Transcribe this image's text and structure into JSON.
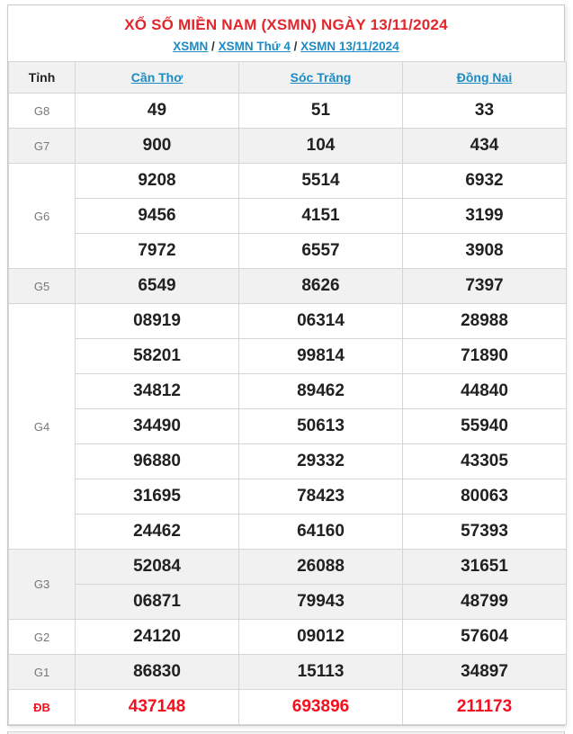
{
  "page": {
    "title": "XỔ SỐ MIỀN NAM (XSMN) NGÀY 13/11/2024",
    "breadcrumb_separator": "/",
    "breadcrumb": [
      {
        "label": "XSMN"
      },
      {
        "label": "XSMN Thứ 4"
      },
      {
        "label": "XSMN 13/11/2024"
      }
    ]
  },
  "table": {
    "corner_header": "Tỉnh",
    "provinces": [
      "Cần Thơ",
      "Sóc Trăng",
      "Đồng Nai"
    ],
    "prize_groups": [
      {
        "label": "G8",
        "shaded": false,
        "special": false,
        "rows": [
          [
            "49",
            "51",
            "33"
          ]
        ]
      },
      {
        "label": "G7",
        "shaded": true,
        "special": false,
        "rows": [
          [
            "900",
            "104",
            "434"
          ]
        ]
      },
      {
        "label": "G6",
        "shaded": false,
        "special": false,
        "rows": [
          [
            "9208",
            "5514",
            "6932"
          ],
          [
            "9456",
            "4151",
            "3199"
          ],
          [
            "7972",
            "6557",
            "3908"
          ]
        ]
      },
      {
        "label": "G5",
        "shaded": true,
        "special": false,
        "rows": [
          [
            "6549",
            "8626",
            "7397"
          ]
        ]
      },
      {
        "label": "G4",
        "shaded": false,
        "special": false,
        "rows": [
          [
            "08919",
            "06314",
            "28988"
          ],
          [
            "58201",
            "99814",
            "71890"
          ],
          [
            "34812",
            "89462",
            "44840"
          ],
          [
            "34490",
            "50613",
            "55940"
          ],
          [
            "96880",
            "29332",
            "43305"
          ],
          [
            "31695",
            "78423",
            "80063"
          ],
          [
            "24462",
            "64160",
            "57393"
          ]
        ]
      },
      {
        "label": "G3",
        "shaded": true,
        "special": false,
        "rows": [
          [
            "52084",
            "26088",
            "31651"
          ],
          [
            "06871",
            "79943",
            "48799"
          ]
        ]
      },
      {
        "label": "G2",
        "shaded": false,
        "special": false,
        "rows": [
          [
            "24120",
            "09012",
            "57604"
          ]
        ]
      },
      {
        "label": "G1",
        "shaded": true,
        "special": false,
        "rows": [
          [
            "86830",
            "15113",
            "34897"
          ]
        ]
      },
      {
        "label": "ĐB",
        "shaded": false,
        "special": true,
        "rows": [
          [
            "437148",
            "693896",
            "211173"
          ]
        ]
      }
    ]
  },
  "colors": {
    "title_red": "#e3252c",
    "special_red": "#f50f1e",
    "link_blue": "#1c8bc4",
    "shaded_row": "#f1f1f1",
    "border": "#d6d6d6"
  }
}
